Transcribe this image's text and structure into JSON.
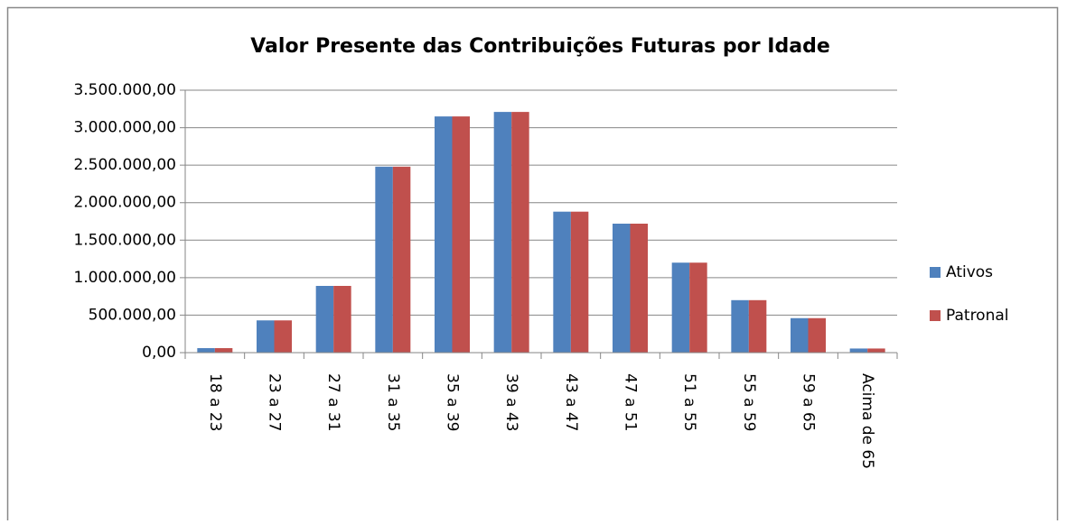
{
  "chart_data": {
    "type": "bar",
    "title": "Valor Presente das Contribuições Futuras por Idade",
    "categories": [
      "18 a 23",
      "23 a 27",
      "27 a 31",
      "31 a 35",
      "35 a 39",
      "39 a 43",
      "43 a 47",
      "47 a 51",
      "51 a 55",
      "55 a 59",
      "59 a 65",
      "Acima de 65"
    ],
    "series": [
      {
        "name": "Ativos",
        "color": "#4f81bd",
        "values": [
          60000,
          430000,
          890000,
          2480000,
          3150000,
          3210000,
          1880000,
          1720000,
          1200000,
          700000,
          460000,
          55000
        ]
      },
      {
        "name": "Patronal",
        "color": "#c0504d",
        "values": [
          60000,
          430000,
          890000,
          2480000,
          3150000,
          3210000,
          1880000,
          1720000,
          1200000,
          700000,
          460000,
          55000
        ]
      }
    ],
    "ylim": [
      0,
      3500000
    ],
    "yticks": [
      {
        "value": 0,
        "label": "0,00"
      },
      {
        "value": 500000,
        "label": "500.000,00"
      },
      {
        "value": 1000000,
        "label": "1.000.000,00"
      },
      {
        "value": 1500000,
        "label": "1.500.000,00"
      },
      {
        "value": 2000000,
        "label": "2.000.000,00"
      },
      {
        "value": 2500000,
        "label": "2.500.000,00"
      },
      {
        "value": 3000000,
        "label": "3.000.000,00"
      },
      {
        "value": 3500000,
        "label": "3.500.000,00"
      }
    ],
    "grid": true,
    "legend": "right"
  }
}
